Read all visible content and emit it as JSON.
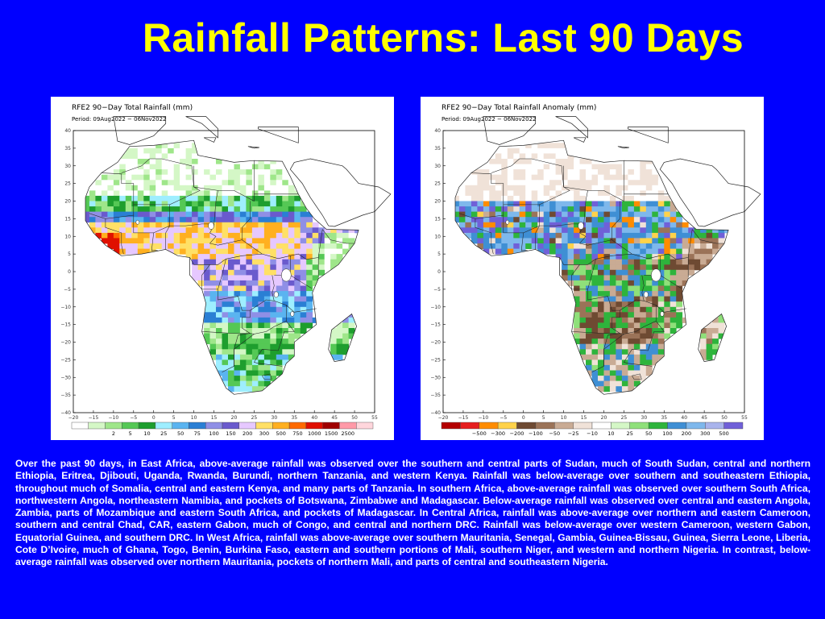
{
  "slide": {
    "title": "Rainfall Patterns: Last 90 Days",
    "description": "Over the past 90 days, in East Africa, above-average rainfall was observed over the southern and central parts of Sudan, much of South Sudan, central and northern Ethiopia, Eritrea, Djibouti, Uganda, Rwanda, Burundi, northern Tanzania, and western Kenya. Rainfall was below-average over southern and southeastern Ethiopia, throughout much of Somalia, central and eastern Kenya, and many parts of Tanzania. In southern Africa, above-average rainfall was observed over southern South Africa, northwestern Angola, northeastern Namibia, and pockets of Botswana, Zimbabwe and Madagascar. Below-average rainfall was observed over central and eastern Angola, Zambia, parts of Mozambique and eastern South Africa, and pockets of Madagascar. In Central Africa, rainfall was above-average over northern and eastern Cameroon, southern and central Chad, CAR, eastern Gabon, much of Congo, and central and northern DRC. Rainfall was below-average over western Cameroon, western Gabon, Equatorial Guinea, and southern DRC. In West Africa, rainfall was above-average over southern Mauritania, Senegal, Gambia, Guinea-Bissau, Guinea, Sierra Leone, Liberia, Cote D’Ivoire, much of Ghana, Togo, Benin, Burkina Faso, eastern and southern portions of Mali, southern Niger, and western and northern Nigeria. In contrast, below-average rainfall was observed over northern Mauritania, pockets of northern  Mali, and parts of central and southeastern Nigeria."
  },
  "maps": [
    {
      "id": "total",
      "title": "RFE2 90−Day Total Rainfall (mm)",
      "period": "Period: 09Aug2022 − 06Nov2022",
      "lat_ticks": [
        "40",
        "35",
        "30",
        "25",
        "20",
        "15",
        "10",
        "5",
        "0",
        "−5",
        "−10",
        "−15",
        "−20",
        "−25",
        "−30",
        "−35",
        "−40"
      ],
      "lon_ticks": [
        "−20",
        "−15",
        "−10",
        "−5",
        "0",
        "5",
        "10",
        "15",
        "20",
        "25",
        "30",
        "35",
        "40",
        "45",
        "50",
        "55"
      ],
      "legend_labels": [
        "2",
        "5",
        "10",
        "25",
        "50",
        "75",
        "100",
        "150",
        "200",
        "300",
        "500",
        "750",
        "1000",
        "1500",
        "2500"
      ],
      "legend_colors": [
        "#ffffff",
        "#d4f7c6",
        "#9fe68a",
        "#55c855",
        "#1e9e2e",
        "#9eeeff",
        "#5ab4f0",
        "#2a7fd4",
        "#8f8fe6",
        "#6a5acd",
        "#e6c8ff",
        "#ffe066",
        "#ffb020",
        "#ff6a00",
        "#e01000",
        "#a00000",
        "#ff9aa8",
        "#ffd6dc"
      ]
    },
    {
      "id": "anomaly",
      "title": "RFE2 90−Day Total Rainfall Anomaly (mm)",
      "period": "Period: 09Aug2022 − 06Nov2022",
      "lat_ticks": [
        "40",
        "35",
        "30",
        "25",
        "20",
        "15",
        "10",
        "5",
        "0",
        "−5",
        "−10",
        "−15",
        "−20",
        "−25",
        "−30",
        "−35",
        "−40"
      ],
      "lon_ticks": [
        "−20",
        "−15",
        "−10",
        "−5",
        "0",
        "5",
        "10",
        "15",
        "20",
        "25",
        "30",
        "35",
        "40",
        "45",
        "50",
        "55"
      ],
      "legend_labels": [
        "−500",
        "−300",
        "−200",
        "−100",
        "−50",
        "−25",
        "−10",
        "10",
        "25",
        "50",
        "100",
        "200",
        "300",
        "500"
      ],
      "legend_colors": [
        "#b40000",
        "#e61e1e",
        "#ff8c00",
        "#ffd24a",
        "#6e4a32",
        "#9b7358",
        "#c9ab94",
        "#f0e2d8",
        "#ffffff",
        "#d4f7c6",
        "#8fe07a",
        "#2eb43c",
        "#3f8fd4",
        "#7eb8ec",
        "#a9b4ec",
        "#7060d8"
      ]
    }
  ]
}
